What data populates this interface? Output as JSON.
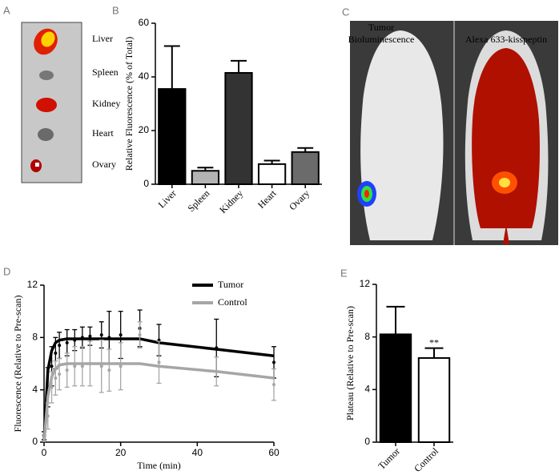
{
  "panel_labels": [
    "A",
    "B",
    "C",
    "D",
    "E"
  ],
  "organ_image": {
    "labels": [
      "Liver",
      "Spleen",
      "Kidney",
      "Heart",
      "Ovary"
    ]
  },
  "mouse_image": {
    "left_label_lines": [
      "Tumor",
      "Bioluminescence"
    ],
    "right_label": "Alexa 633-kisspeptin"
  },
  "chart_data": [
    {
      "type": "bar",
      "ylabel": "Relative Fluorescence (% of Total)",
      "categories": [
        "Liver",
        "Spleen",
        "Kidney",
        "Heart",
        "Ovary"
      ],
      "values": [
        35.5,
        5,
        41.5,
        7.5,
        12
      ],
      "errors": [
        16,
        1.2,
        4.5,
        1.3,
        1.5
      ],
      "colors": [
        "#000000",
        "#b3b3b3",
        "#333333",
        "#ffffff",
        "#6b6b6b"
      ],
      "ylim": [
        0,
        60
      ],
      "yticks": [
        0,
        20,
        40,
        60
      ],
      "grid": false
    },
    {
      "type": "line",
      "xlabel": "Time (min)",
      "ylabel": "Fluorescence (Relative to Pre-scan)",
      "x": [
        0,
        1,
        2,
        3,
        4,
        6,
        8,
        10,
        12,
        15,
        17,
        20,
        25,
        30,
        45,
        60
      ],
      "series": [
        {
          "name": "Tumor",
          "color": "#000000",
          "values": [
            0.5,
            4.2,
            5.8,
            6.8,
            7.4,
            7.6,
            7.8,
            8.0,
            8.1,
            8.2,
            8.0,
            8.2,
            8.7,
            7.8,
            7.2,
            6.1
          ],
          "errors": [
            0.3,
            1.5,
            1.5,
            1.2,
            1.0,
            1.0,
            0.8,
            0.8,
            0.7,
            1.0,
            2.0,
            1.8,
            1.4,
            1.2,
            2.2,
            1.2
          ],
          "fit": [
            0,
            5.5,
            7.0,
            7.6,
            7.8,
            7.9,
            7.9,
            7.9,
            7.9,
            7.9,
            7.9,
            7.9,
            7.9,
            7.6,
            7.1,
            6.6
          ]
        },
        {
          "name": "Control",
          "color": "#a6a6a6",
          "values": [
            0.3,
            2.0,
            4.2,
            4.9,
            5.2,
            5.5,
            5.8,
            5.8,
            6.0,
            5.8,
            5.5,
            5.8,
            8.2,
            6.1,
            5.4,
            4.4
          ],
          "errors": [
            0.2,
            1.0,
            1.2,
            1.3,
            1.2,
            1.3,
            1.5,
            1.5,
            1.7,
            2.0,
            1.6,
            1.8,
            1.0,
            1.6,
            1.1,
            1.2
          ],
          "fit": [
            0,
            3.5,
            5.0,
            5.6,
            5.9,
            6.0,
            6.0,
            6.0,
            6.0,
            6.0,
            6.0,
            6.0,
            6.0,
            5.8,
            5.4,
            4.9
          ]
        }
      ],
      "xlim": [
        0,
        60
      ],
      "xticks": [
        0,
        20,
        40,
        60
      ],
      "ylim": [
        0,
        12
      ],
      "yticks": [
        0,
        4,
        8,
        12
      ],
      "legend": "upper right",
      "grid": false
    },
    {
      "type": "bar",
      "ylabel": "Plateau (Relative to Pre-scan)",
      "categories": [
        "Tumor",
        "Control"
      ],
      "values": [
        8.2,
        6.4
      ],
      "errors": [
        2.1,
        0.75
      ],
      "colors": [
        "#000000",
        "#ffffff"
      ],
      "annotation": "**",
      "ylim": [
        0,
        12
      ],
      "yticks": [
        0,
        4,
        8,
        12
      ],
      "grid": false
    }
  ]
}
